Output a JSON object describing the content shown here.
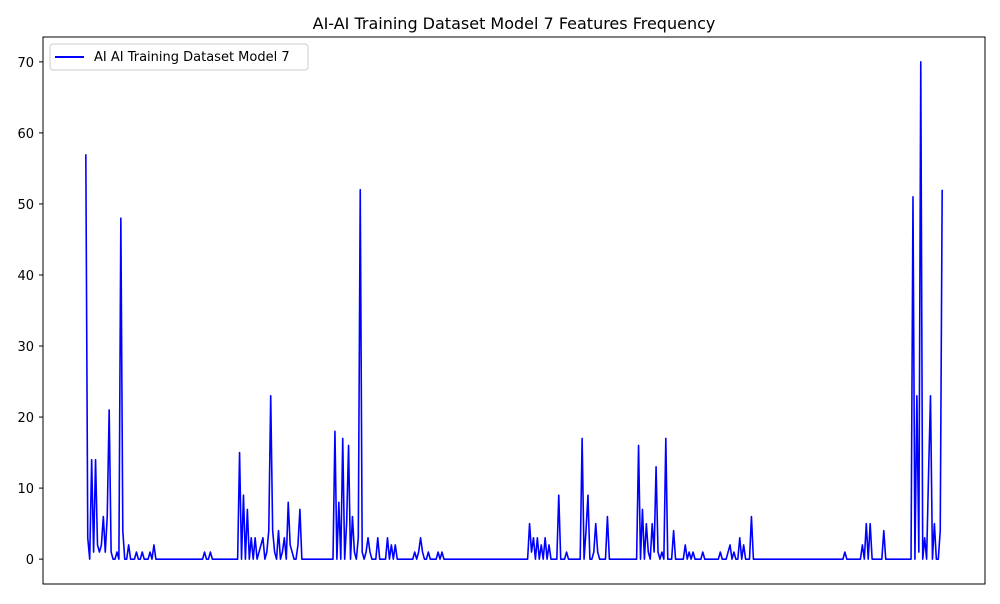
{
  "chart_data": {
    "type": "line",
    "title": "AI-AI Training Dataset Model 7 Features Frequency",
    "xlabel": "",
    "ylabel": "",
    "x_ticks_visible": false,
    "ylim": [
      -3.5,
      73.5
    ],
    "yticks": [
      0,
      10,
      20,
      30,
      40,
      50,
      60,
      70
    ],
    "grid": false,
    "legend_position": "upper left",
    "series": [
      {
        "name": "AI AI Training Dataset Model 7",
        "color": "#0000ff",
        "points": [
          [
            0,
            57
          ],
          [
            1,
            3
          ],
          [
            2,
            0
          ],
          [
            3,
            14
          ],
          [
            4,
            1
          ],
          [
            5,
            14
          ],
          [
            6,
            2
          ],
          [
            7,
            1
          ],
          [
            8,
            2
          ],
          [
            9,
            6
          ],
          [
            10,
            1
          ],
          [
            11,
            6
          ],
          [
            12,
            21
          ],
          [
            13,
            1
          ],
          [
            14,
            0
          ],
          [
            15,
            0
          ],
          [
            16,
            1
          ],
          [
            17,
            0
          ],
          [
            18,
            48
          ],
          [
            19,
            4
          ],
          [
            20,
            0
          ],
          [
            21,
            0
          ],
          [
            22,
            2
          ],
          [
            23,
            0
          ],
          [
            24,
            0
          ],
          [
            25,
            0
          ],
          [
            26,
            1
          ],
          [
            27,
            0
          ],
          [
            28,
            0
          ],
          [
            29,
            1
          ],
          [
            30,
            0
          ],
          [
            31,
            0
          ],
          [
            32,
            0
          ],
          [
            33,
            1
          ],
          [
            34,
            0
          ],
          [
            35,
            2
          ],
          [
            36,
            0
          ],
          [
            37,
            0
          ],
          [
            60,
            0
          ],
          [
            61,
            1
          ],
          [
            62,
            0
          ],
          [
            63,
            0
          ],
          [
            64,
            1
          ],
          [
            65,
            0
          ],
          [
            66,
            0
          ],
          [
            78,
            0
          ],
          [
            79,
            15
          ],
          [
            80,
            0
          ],
          [
            81,
            9
          ],
          [
            82,
            0
          ],
          [
            83,
            7
          ],
          [
            84,
            0
          ],
          [
            85,
            3
          ],
          [
            86,
            0
          ],
          [
            87,
            3
          ],
          [
            88,
            0
          ],
          [
            89,
            1
          ],
          [
            90,
            2
          ],
          [
            91,
            3
          ],
          [
            92,
            0
          ],
          [
            93,
            1
          ],
          [
            94,
            4
          ],
          [
            95,
            23
          ],
          [
            96,
            4
          ],
          [
            97,
            1
          ],
          [
            98,
            0
          ],
          [
            99,
            4
          ],
          [
            100,
            0
          ],
          [
            101,
            1
          ],
          [
            102,
            3
          ],
          [
            103,
            0
          ],
          [
            104,
            8
          ],
          [
            105,
            2
          ],
          [
            106,
            1
          ],
          [
            107,
            0
          ],
          [
            108,
            0
          ],
          [
            109,
            2
          ],
          [
            110,
            7
          ],
          [
            111,
            0
          ],
          [
            112,
            0
          ],
          [
            127,
            0
          ],
          [
            128,
            18
          ],
          [
            129,
            0
          ],
          [
            130,
            8
          ],
          [
            131,
            0
          ],
          [
            132,
            17
          ],
          [
            133,
            0
          ],
          [
            134,
            5
          ],
          [
            135,
            16
          ],
          [
            136,
            0
          ],
          [
            137,
            6
          ],
          [
            138,
            1
          ],
          [
            139,
            0
          ],
          [
            140,
            3
          ],
          [
            141,
            52
          ],
          [
            142,
            1
          ],
          [
            143,
            0
          ],
          [
            144,
            1
          ],
          [
            145,
            3
          ],
          [
            146,
            1
          ],
          [
            147,
            0
          ],
          [
            148,
            0
          ],
          [
            149,
            0
          ],
          [
            150,
            3
          ],
          [
            151,
            0
          ],
          [
            152,
            0
          ],
          [
            153,
            0
          ],
          [
            154,
            0
          ],
          [
            155,
            3
          ],
          [
            156,
            0
          ],
          [
            157,
            2
          ],
          [
            158,
            0
          ],
          [
            159,
            2
          ],
          [
            160,
            0
          ],
          [
            168,
            0
          ],
          [
            169,
            1
          ],
          [
            170,
            0
          ],
          [
            171,
            1
          ],
          [
            172,
            3
          ],
          [
            173,
            1
          ],
          [
            174,
            0
          ],
          [
            175,
            0
          ],
          [
            176,
            1
          ],
          [
            177,
            0
          ],
          [
            178,
            0
          ],
          [
            179,
            0
          ],
          [
            180,
            0
          ],
          [
            181,
            1
          ],
          [
            182,
            0
          ],
          [
            183,
            1
          ],
          [
            184,
            0
          ],
          [
            227,
            0
          ],
          [
            228,
            5
          ],
          [
            229,
            1
          ],
          [
            230,
            3
          ],
          [
            231,
            0
          ],
          [
            232,
            3
          ],
          [
            233,
            0
          ],
          [
            234,
            2
          ],
          [
            235,
            0
          ],
          [
            236,
            3
          ],
          [
            237,
            0
          ],
          [
            238,
            2
          ],
          [
            239,
            0
          ],
          [
            242,
            0
          ],
          [
            243,
            9
          ],
          [
            244,
            0
          ],
          [
            245,
            0
          ],
          [
            246,
            0
          ],
          [
            247,
            1
          ],
          [
            248,
            0
          ],
          [
            254,
            0
          ],
          [
            255,
            17
          ],
          [
            256,
            0
          ],
          [
            257,
            4
          ],
          [
            258,
            9
          ],
          [
            259,
            0
          ],
          [
            260,
            0
          ],
          [
            261,
            1
          ],
          [
            262,
            5
          ],
          [
            263,
            1
          ],
          [
            264,
            0
          ],
          [
            265,
            0
          ],
          [
            266,
            0
          ],
          [
            267,
            0
          ],
          [
            268,
            6
          ],
          [
            269,
            0
          ],
          [
            283,
            0
          ],
          [
            284,
            16
          ],
          [
            285,
            0
          ],
          [
            286,
            7
          ],
          [
            287,
            0
          ],
          [
            288,
            5
          ],
          [
            289,
            1
          ],
          [
            290,
            0
          ],
          [
            291,
            5
          ],
          [
            292,
            1
          ],
          [
            293,
            13
          ],
          [
            294,
            1
          ],
          [
            295,
            0
          ],
          [
            296,
            1
          ],
          [
            297,
            0
          ],
          [
            298,
            17
          ],
          [
            299,
            0
          ],
          [
            300,
            0
          ],
          [
            301,
            0
          ],
          [
            302,
            4
          ],
          [
            303,
            0
          ],
          [
            307,
            0
          ],
          [
            308,
            2
          ],
          [
            309,
            0
          ],
          [
            310,
            1
          ],
          [
            311,
            0
          ],
          [
            312,
            1
          ],
          [
            313,
            0
          ],
          [
            314,
            0
          ],
          [
            315,
            0
          ],
          [
            316,
            0
          ],
          [
            317,
            1
          ],
          [
            318,
            0
          ],
          [
            325,
            0
          ],
          [
            326,
            1
          ],
          [
            327,
            0
          ],
          [
            328,
            0
          ],
          [
            329,
            0
          ],
          [
            330,
            1
          ],
          [
            331,
            2
          ],
          [
            332,
            0
          ],
          [
            333,
            1
          ],
          [
            334,
            0
          ],
          [
            335,
            0
          ],
          [
            336,
            3
          ],
          [
            337,
            0
          ],
          [
            338,
            2
          ],
          [
            339,
            0
          ],
          [
            341,
            0
          ],
          [
            342,
            6
          ],
          [
            343,
            0
          ],
          [
            389,
            0
          ],
          [
            390,
            1
          ],
          [
            391,
            0
          ],
          [
            398,
            0
          ],
          [
            399,
            2
          ],
          [
            400,
            0
          ],
          [
            401,
            5
          ],
          [
            402,
            0
          ],
          [
            403,
            5
          ],
          [
            404,
            0
          ],
          [
            409,
            0
          ],
          [
            410,
            4
          ],
          [
            411,
            0
          ],
          [
            424,
            0
          ],
          [
            425,
            51
          ],
          [
            426,
            0
          ],
          [
            427,
            23
          ],
          [
            428,
            1
          ],
          [
            429,
            70
          ],
          [
            430,
            0
          ],
          [
            431,
            3
          ],
          [
            432,
            0
          ],
          [
            433,
            12
          ],
          [
            434,
            23
          ],
          [
            435,
            0
          ],
          [
            436,
            5
          ],
          [
            437,
            0
          ],
          [
            438,
            0
          ],
          [
            439,
            4
          ],
          [
            440,
            52
          ]
        ]
      }
    ]
  }
}
